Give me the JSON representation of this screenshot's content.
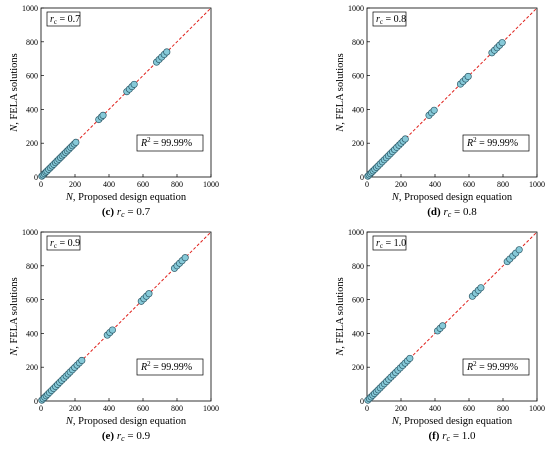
{
  "figure": {
    "panels": [
      {
        "id": "c",
        "caption_letter": "(c)",
        "caption_math": "r",
        "caption_sub": "c",
        "caption_value": " = 0.7",
        "rc_label": "r",
        "rc_sub": "c",
        "rc_value": " = 0.7",
        "r2_label": "R",
        "r2_sup": "2",
        "r2_value": " = 99.99%",
        "xlabel_var": "N",
        "xlabel_text": ", Proposed design equation",
        "ylabel_var": "N",
        "ylabel_text": ", FELA solutions"
      },
      {
        "id": "d",
        "caption_letter": "(d)",
        "caption_math": "r",
        "caption_sub": "c",
        "caption_value": " = 0.8",
        "rc_label": "r",
        "rc_sub": "c",
        "rc_value": " = 0.8",
        "r2_label": "R",
        "r2_sup": "2",
        "r2_value": " = 99.99%",
        "xlabel_var": "N",
        "xlabel_text": ", Proposed design equation",
        "ylabel_var": "N",
        "ylabel_text": ", FELA solutions"
      },
      {
        "id": "e",
        "caption_letter": "(e)",
        "caption_math": "r",
        "caption_sub": "c",
        "caption_value": " = 0.9",
        "rc_label": "r",
        "rc_sub": "c",
        "rc_value": " = 0.9",
        "r2_label": "R",
        "r2_sup": "2",
        "r2_value": " = 99.99%",
        "xlabel_var": "N",
        "xlabel_text": ", Proposed design equation",
        "ylabel_var": "N",
        "ylabel_text": ", FELA solutions"
      },
      {
        "id": "f",
        "caption_letter": "(f)",
        "caption_math": "r",
        "caption_sub": "c",
        "caption_value": " = 1.0",
        "rc_label": "r",
        "rc_sub": "c",
        "rc_value": " = 1.0",
        "r2_label": "R",
        "r2_sup": "2",
        "r2_value": " = 99.99%",
        "xlabel_var": "N",
        "xlabel_text": ", Proposed design equation",
        "ylabel_var": "N",
        "ylabel_text": ", FELA solutions"
      }
    ]
  },
  "chart_data": [
    {
      "type": "scatter",
      "id": "c",
      "xlim": [
        0,
        1000
      ],
      "ylim": [
        0,
        1000
      ],
      "xticks": [
        "0",
        "200",
        "400",
        "600",
        "800",
        "1000"
      ],
      "yticks": [
        "0",
        "200",
        "400",
        "600",
        "800",
        "1000"
      ],
      "reference_line": {
        "style": "dashed",
        "color": "#e0201b",
        "from": [
          0,
          0
        ],
        "to": [
          1000,
          1000
        ]
      },
      "marker": {
        "fill": "#86c9d8",
        "stroke": "#2b5867"
      },
      "grid": false,
      "series": [
        {
          "points": [
            [
              5,
              5
            ],
            [
              12,
              12
            ],
            [
              20,
              20
            ],
            [
              28,
              28
            ],
            [
              35,
              35
            ],
            [
              45,
              45
            ],
            [
              55,
              55
            ],
            [
              65,
              65
            ],
            [
              75,
              75
            ],
            [
              85,
              85
            ],
            [
              95,
              95
            ],
            [
              105,
              105
            ],
            [
              115,
              115
            ],
            [
              125,
              125
            ],
            [
              135,
              135
            ],
            [
              145,
              145
            ],
            [
              155,
              155
            ],
            [
              165,
              165
            ],
            [
              175,
              175
            ],
            [
              185,
              185
            ],
            [
              195,
              195
            ],
            [
              205,
              205
            ],
            [
              340,
              340
            ],
            [
              355,
              355
            ],
            [
              365,
              365
            ],
            [
              505,
              505
            ],
            [
              520,
              520
            ],
            [
              535,
              535
            ],
            [
              548,
              548
            ],
            [
              680,
              680
            ],
            [
              695,
              695
            ],
            [
              710,
              710
            ],
            [
              725,
              725
            ],
            [
              740,
              740
            ]
          ]
        }
      ]
    },
    {
      "type": "scatter",
      "id": "d",
      "xlim": [
        0,
        1000
      ],
      "ylim": [
        0,
        1000
      ],
      "xticks": [
        "0",
        "200",
        "400",
        "600",
        "800",
        "1000"
      ],
      "yticks": [
        "0",
        "200",
        "400",
        "600",
        "800",
        "1000"
      ],
      "reference_line": {
        "style": "dashed",
        "color": "#e0201b",
        "from": [
          0,
          0
        ],
        "to": [
          1000,
          1000
        ]
      },
      "marker": {
        "fill": "#86c9d8",
        "stroke": "#2b5867"
      },
      "grid": false,
      "series": [
        {
          "points": [
            [
              5,
              5
            ],
            [
              12,
              12
            ],
            [
              20,
              20
            ],
            [
              28,
              28
            ],
            [
              36,
              36
            ],
            [
              46,
              46
            ],
            [
              56,
              56
            ],
            [
              66,
              66
            ],
            [
              78,
              78
            ],
            [
              90,
              90
            ],
            [
              102,
              102
            ],
            [
              114,
              114
            ],
            [
              126,
              126
            ],
            [
              138,
              138
            ],
            [
              150,
              150
            ],
            [
              162,
              162
            ],
            [
              175,
              175
            ],
            [
              188,
              188
            ],
            [
              200,
              200
            ],
            [
              212,
              212
            ],
            [
              225,
              225
            ],
            [
              365,
              365
            ],
            [
              380,
              380
            ],
            [
              395,
              395
            ],
            [
              550,
              550
            ],
            [
              565,
              565
            ],
            [
              580,
              580
            ],
            [
              595,
              595
            ],
            [
              735,
              735
            ],
            [
              750,
              750
            ],
            [
              765,
              765
            ],
            [
              780,
              780
            ],
            [
              795,
              795
            ]
          ]
        }
      ]
    },
    {
      "type": "scatter",
      "id": "e",
      "xlim": [
        0,
        1000
      ],
      "ylim": [
        0,
        1000
      ],
      "xticks": [
        "0",
        "200",
        "400",
        "600",
        "800",
        "1000"
      ],
      "yticks": [
        "0",
        "200",
        "400",
        "600",
        "800",
        "1000"
      ],
      "reference_line": {
        "style": "dashed",
        "color": "#e0201b",
        "from": [
          0,
          0
        ],
        "to": [
          1000,
          1000
        ]
      },
      "marker": {
        "fill": "#86c9d8",
        "stroke": "#2b5867"
      },
      "grid": false,
      "series": [
        {
          "points": [
            [
              5,
              5
            ],
            [
              13,
              13
            ],
            [
              22,
              22
            ],
            [
              31,
              31
            ],
            [
              40,
              40
            ],
            [
              50,
              50
            ],
            [
              62,
              62
            ],
            [
              74,
              74
            ],
            [
              86,
              86
            ],
            [
              98,
              98
            ],
            [
              110,
              110
            ],
            [
              122,
              122
            ],
            [
              135,
              135
            ],
            [
              148,
              148
            ],
            [
              160,
              160
            ],
            [
              172,
              172
            ],
            [
              185,
              185
            ],
            [
              198,
              198
            ],
            [
              212,
              212
            ],
            [
              226,
              226
            ],
            [
              240,
              240
            ],
            [
              390,
              390
            ],
            [
              405,
              405
            ],
            [
              420,
              420
            ],
            [
              590,
              590
            ],
            [
              605,
              605
            ],
            [
              620,
              620
            ],
            [
              635,
              635
            ],
            [
              785,
              785
            ],
            [
              800,
              800
            ],
            [
              815,
              815
            ],
            [
              830,
              830
            ],
            [
              848,
              848
            ]
          ]
        }
      ]
    },
    {
      "type": "scatter",
      "id": "f",
      "xlim": [
        0,
        1000
      ],
      "ylim": [
        0,
        1000
      ],
      "xticks": [
        "0",
        "200",
        "400",
        "600",
        "800",
        "1000"
      ],
      "yticks": [
        "0",
        "200",
        "400",
        "600",
        "800",
        "1000"
      ],
      "reference_line": {
        "style": "dashed",
        "color": "#e0201b",
        "from": [
          0,
          0
        ],
        "to": [
          1000,
          1000
        ]
      },
      "marker": {
        "fill": "#86c9d8",
        "stroke": "#2b5867"
      },
      "grid": false,
      "series": [
        {
          "points": [
            [
              5,
              5
            ],
            [
              14,
              14
            ],
            [
              24,
              24
            ],
            [
              34,
              34
            ],
            [
              44,
              44
            ],
            [
              55,
              55
            ],
            [
              66,
              66
            ],
            [
              78,
              78
            ],
            [
              90,
              90
            ],
            [
              102,
              102
            ],
            [
              115,
              115
            ],
            [
              128,
              128
            ],
            [
              141,
              141
            ],
            [
              155,
              155
            ],
            [
              168,
              168
            ],
            [
              182,
              182
            ],
            [
              196,
              196
            ],
            [
              210,
              210
            ],
            [
              224,
              224
            ],
            [
              238,
              238
            ],
            [
              252,
              252
            ],
            [
              415,
              415
            ],
            [
              430,
              430
            ],
            [
              445,
              445
            ],
            [
              620,
              620
            ],
            [
              638,
              638
            ],
            [
              655,
              655
            ],
            [
              670,
              670
            ],
            [
              825,
              825
            ],
            [
              840,
              840
            ],
            [
              858,
              858
            ],
            [
              875,
              875
            ],
            [
              895,
              895
            ]
          ]
        }
      ]
    }
  ]
}
